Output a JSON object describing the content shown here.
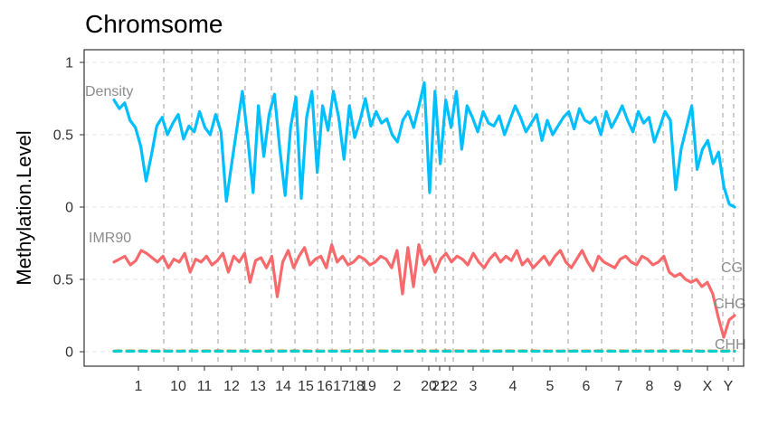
{
  "chart_data": {
    "type": "line",
    "title": "Chromsome",
    "xlabel": "",
    "ylabel": "Methylation.Level",
    "grid": "major y gridlines dashed; vertical dashed lines at chromosome boundaries",
    "x_tick_labels": [
      "1",
      "10",
      "11",
      "12",
      "13",
      "14",
      "15",
      "16",
      "17",
      "18",
      "19",
      "2",
      "20",
      "21",
      "22",
      "3",
      "4",
      "5",
      "6",
      "7",
      "8",
      "9",
      "X",
      "Y"
    ],
    "panels": [
      {
        "label": "Density",
        "y_ticks": [
          "1",
          "0.5",
          "0"
        ],
        "ylim": [
          0,
          1
        ],
        "series": [
          {
            "name": "",
            "color": "#00BFFF",
            "values": [
              0.74,
              0.68,
              0.72,
              0.6,
              0.55,
              0.42,
              0.18,
              0.36,
              0.56,
              0.62,
              0.5,
              0.58,
              0.64,
              0.47,
              0.56,
              0.52,
              0.66,
              0.55,
              0.5,
              0.64,
              0.52,
              0.04,
              0.3,
              0.55,
              0.8,
              0.48,
              0.1,
              0.7,
              0.35,
              0.64,
              0.78,
              0.4,
              0.08,
              0.55,
              0.76,
              0.06,
              0.62,
              0.8,
              0.24,
              0.7,
              0.53,
              0.8,
              0.62,
              0.33,
              0.7,
              0.48,
              0.6,
              0.75,
              0.56,
              0.66,
              0.58,
              0.61,
              0.5,
              0.45,
              0.6,
              0.66,
              0.55,
              0.7,
              0.86,
              0.1,
              0.8,
              0.3,
              0.74,
              0.55,
              0.8,
              0.4,
              0.7,
              0.62,
              0.52,
              0.66,
              0.58,
              0.56,
              0.63,
              0.5,
              0.6,
              0.7,
              0.62,
              0.52,
              0.58,
              0.64,
              0.46,
              0.6,
              0.5,
              0.56,
              0.62,
              0.66,
              0.54,
              0.68,
              0.6,
              0.58,
              0.62,
              0.5,
              0.66,
              0.55,
              0.62,
              0.7,
              0.6,
              0.52,
              0.66,
              0.58,
              0.62,
              0.45,
              0.55,
              0.66,
              0.6,
              0.12,
              0.4,
              0.55,
              0.7,
              0.26,
              0.4,
              0.46,
              0.3,
              0.38,
              0.14,
              0.02,
              0.0
            ]
          }
        ]
      },
      {
        "label": "IMR90",
        "y_ticks": [
          "0.5",
          "0"
        ],
        "ylim": [
          0,
          1
        ],
        "series": [
          {
            "name": "CG",
            "color": "#F8696B",
            "values": [
              0.62,
              0.64,
              0.66,
              0.6,
              0.63,
              0.7,
              0.68,
              0.65,
              0.62,
              0.66,
              0.58,
              0.64,
              0.62,
              0.68,
              0.55,
              0.64,
              0.62,
              0.66,
              0.6,
              0.63,
              0.68,
              0.55,
              0.66,
              0.62,
              0.68,
              0.48,
              0.63,
              0.65,
              0.58,
              0.66,
              0.38,
              0.62,
              0.7,
              0.58,
              0.66,
              0.72,
              0.6,
              0.64,
              0.66,
              0.58,
              0.74,
              0.62,
              0.66,
              0.6,
              0.62,
              0.66,
              0.64,
              0.6,
              0.62,
              0.66,
              0.64,
              0.58,
              0.7,
              0.4,
              0.72,
              0.45,
              0.74,
              0.6,
              0.66,
              0.55,
              0.64,
              0.68,
              0.62,
              0.66,
              0.64,
              0.6,
              0.68,
              0.62,
              0.58,
              0.64,
              0.68,
              0.62,
              0.66,
              0.63,
              0.7,
              0.6,
              0.64,
              0.58,
              0.62,
              0.66,
              0.6,
              0.66,
              0.7,
              0.62,
              0.58,
              0.64,
              0.7,
              0.62,
              0.56,
              0.66,
              0.62,
              0.6,
              0.58,
              0.64,
              0.66,
              0.62,
              0.6,
              0.66,
              0.64,
              0.6,
              0.62,
              0.66,
              0.55,
              0.52,
              0.54,
              0.5,
              0.48,
              0.5,
              0.45,
              0.48,
              0.4,
              0.24,
              0.1,
              0.22,
              0.25
            ]
          },
          {
            "name": "CHG",
            "color": "#B8860B",
            "values": [
              0.005,
              0.006,
              0.005,
              0.006,
              0.005,
              0.006,
              0.005,
              0.006,
              0.005,
              0.006,
              0.005,
              0.006,
              0.005,
              0.006,
              0.005,
              0.006,
              0.005,
              0.006,
              0.005,
              0.006,
              0.005,
              0.006,
              0.005,
              0.006,
              0.005,
              0.006,
              0.005,
              0.006,
              0.005,
              0.006,
              0.005,
              0.006,
              0.005,
              0.006,
              0.005,
              0.006,
              0.005,
              0.006,
              0.005,
              0.006,
              0.005,
              0.006,
              0.005,
              0.006,
              0.005,
              0.006,
              0.005,
              0.006,
              0.005,
              0.006,
              0.005,
              0.006,
              0.005,
              0.006,
              0.005,
              0.006,
              0.005,
              0.006,
              0.005,
              0.006,
              0.005,
              0.006,
              0.005,
              0.006,
              0.005,
              0.006,
              0.005,
              0.006,
              0.005,
              0.006,
              0.005,
              0.006,
              0.005,
              0.006,
              0.005,
              0.006,
              0.005,
              0.006,
              0.005,
              0.006,
              0.005,
              0.006,
              0.005,
              0.006,
              0.005,
              0.006,
              0.005,
              0.006,
              0.005,
              0.006,
              0.005,
              0.006,
              0.005,
              0.006,
              0.005,
              0.006,
              0.005,
              0.006,
              0.005,
              0.006,
              0.005,
              0.006,
              0.005,
              0.006,
              0.005,
              0.006,
              0.005,
              0.006,
              0.005,
              0.006,
              0.005,
              0.006,
              0.005,
              0.006,
              0.005
            ]
          },
          {
            "name": "CHH",
            "color": "#00CED1",
            "values": [
              0.003,
              0.004,
              0.003,
              0.004,
              0.003,
              0.004,
              0.003,
              0.004,
              0.003,
              0.004,
              0.003,
              0.004,
              0.003,
              0.004,
              0.003,
              0.004,
              0.003,
              0.004,
              0.003,
              0.004,
              0.003,
              0.004,
              0.003,
              0.004,
              0.003,
              0.004,
              0.003,
              0.004,
              0.003,
              0.004,
              0.003,
              0.004,
              0.003,
              0.004,
              0.003,
              0.004,
              0.003,
              0.004,
              0.003,
              0.004,
              0.003,
              0.004,
              0.003,
              0.004,
              0.003,
              0.004,
              0.003,
              0.004,
              0.003,
              0.004,
              0.003,
              0.004,
              0.003,
              0.004,
              0.003,
              0.004,
              0.003,
              0.004,
              0.003,
              0.004,
              0.003,
              0.004,
              0.003,
              0.004,
              0.003,
              0.004,
              0.003,
              0.004,
              0.003,
              0.004,
              0.003,
              0.004,
              0.003,
              0.004,
              0.003,
              0.004,
              0.003,
              0.004,
              0.003,
              0.004,
              0.003,
              0.004,
              0.003,
              0.004,
              0.003,
              0.004,
              0.003,
              0.004,
              0.003,
              0.004,
              0.003,
              0.004,
              0.003,
              0.004,
              0.003,
              0.004,
              0.003,
              0.004,
              0.003,
              0.004,
              0.003,
              0.004,
              0.003,
              0.004,
              0.003,
              0.004,
              0.003,
              0.004,
              0.003,
              0.004,
              0.003,
              0.004,
              0.003
            ]
          }
        ]
      }
    ]
  }
}
